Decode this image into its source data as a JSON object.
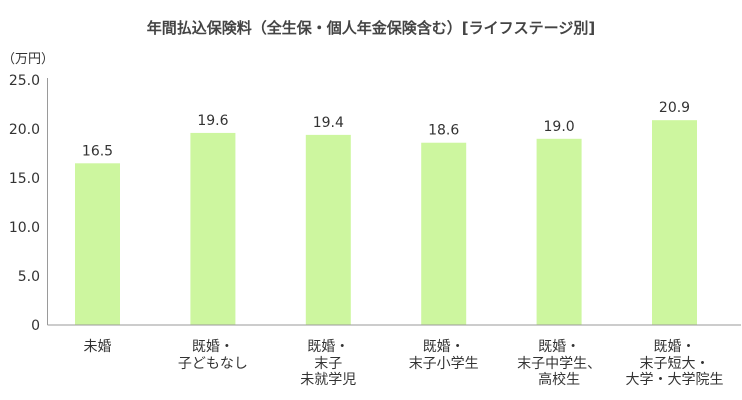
{
  "chart_data": {
    "type": "bar",
    "title": "年間払込保険料（全生保・個人年金保険含む）[ライフステージ別]",
    "ylabel": "（万円）",
    "xlabel": "",
    "categories": [
      "未婚",
      "既婚・\n子どもなし",
      "既婚・\n末子\n未就学児",
      "既婚・\n末子小学生",
      "既婚・\n末子中学生、\n高校生",
      "既婚・\n末子短大・\n大学・大学院生"
    ],
    "values": [
      16.5,
      19.6,
      19.4,
      18.6,
      19.0,
      20.9
    ],
    "data_labels": [
      "16.5",
      "19.6",
      "19.4",
      "18.6",
      "19.0",
      "20.9"
    ],
    "ylim": [
      0,
      25
    ],
    "yticks": [
      0,
      5,
      10,
      15,
      20,
      25
    ],
    "ytick_labels": [
      "0",
      "5.0",
      "10.0",
      "15.0",
      "20.0",
      "25.0"
    ],
    "grid": false,
    "legend": false,
    "colors": {
      "bar": "#cdf69f",
      "axis": "#9a9a9a"
    }
  }
}
